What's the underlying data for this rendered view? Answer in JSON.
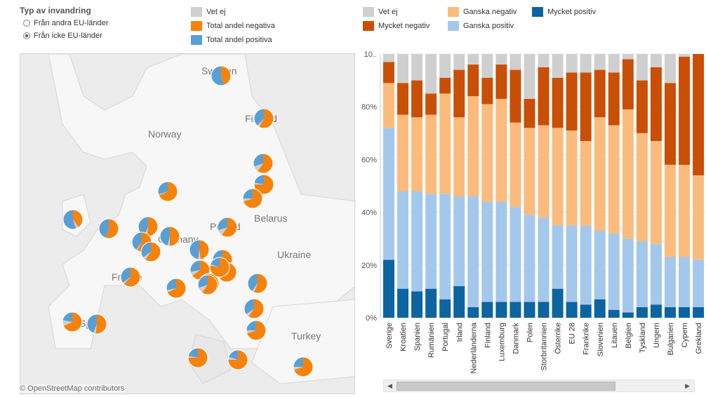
{
  "filter": {
    "title": "Typ av invandring",
    "options": [
      {
        "label": "Från andra EU-länder",
        "checked": false
      },
      {
        "label": "Från icke EU-länder",
        "checked": true
      }
    ]
  },
  "map_legend": [
    {
      "label": "Vet ej",
      "color": "#cfcfcf"
    },
    {
      "label": "Total andel negativa",
      "color": "#f7820b"
    },
    {
      "label": "Total andel positiva",
      "color": "#5a9fd4"
    }
  ],
  "bar_legend": [
    {
      "label": "Vet ej",
      "color": "#cfcfcf"
    },
    {
      "label": "Mycket negativ",
      "color": "#c84f05"
    },
    {
      "label": "Ganska negativ",
      "color": "#fbbb7d"
    },
    {
      "label": "Ganska positiv",
      "color": "#a4c8ec"
    },
    {
      "label": "Mycket positiv",
      "color": "#0c64a0"
    }
  ],
  "map": {
    "labels": [
      "Sweden",
      "Finland",
      "Norway",
      "Poland",
      "Belarus",
      "Ukraine",
      "Germany",
      "France",
      "Spain",
      "Turkey"
    ],
    "attribution": "© OpenStreetMap contributors",
    "pies": [
      {
        "negative": 45,
        "positive": 55,
        "unknown": 0
      },
      {
        "negative": 58,
        "positive": 38,
        "unknown": 4
      },
      {
        "negative": 60,
        "positive": 30,
        "unknown": 10
      },
      {
        "negative": 75,
        "positive": 22,
        "unknown": 3
      },
      {
        "negative": 70,
        "positive": 25,
        "unknown": 5
      },
      {
        "negative": 68,
        "positive": 30,
        "unknown": 2
      },
      {
        "negative": 40,
        "positive": 55,
        "unknown": 5
      },
      {
        "negative": 55,
        "positive": 45,
        "unknown": 0
      },
      {
        "negative": 52,
        "positive": 44,
        "unknown": 4
      },
      {
        "negative": 58,
        "positive": 40,
        "unknown": 2
      },
      {
        "negative": 50,
        "positive": 46,
        "unknown": 4
      },
      {
        "negative": 60,
        "positive": 35,
        "unknown": 5
      },
      {
        "negative": 48,
        "positive": 48,
        "unknown": 4
      },
      {
        "negative": 60,
        "positive": 30,
        "unknown": 10
      },
      {
        "negative": 70,
        "positive": 25,
        "unknown": 5
      },
      {
        "negative": 65,
        "positive": 28,
        "unknown": 7
      },
      {
        "negative": 62,
        "positive": 33,
        "unknown": 5
      },
      {
        "negative": 72,
        "positive": 25,
        "unknown": 3
      },
      {
        "negative": 68,
        "positive": 28,
        "unknown": 4
      },
      {
        "negative": 60,
        "positive": 30,
        "unknown": 10
      },
      {
        "negative": 62,
        "positive": 35,
        "unknown": 3
      },
      {
        "negative": 56,
        "positive": 40,
        "unknown": 4
      },
      {
        "negative": 68,
        "positive": 22,
        "unknown": 10
      },
      {
        "negative": 52,
        "positive": 44,
        "unknown": 4
      },
      {
        "negative": 60,
        "positive": 35,
        "unknown": 5
      },
      {
        "negative": 70,
        "positive": 25,
        "unknown": 5
      },
      {
        "negative": 70,
        "positive": 25,
        "unknown": 5
      },
      {
        "negative": 75,
        "positive": 22,
        "unknown": 3
      },
      {
        "negative": 75,
        "positive": 20,
        "unknown": 5
      },
      {
        "negative": 78,
        "positive": 20,
        "unknown": 2
      }
    ]
  },
  "chart_data": {
    "type": "bar",
    "stacked": true,
    "title": "",
    "xlabel": "",
    "ylabel": "",
    "ylim": [
      0,
      100
    ],
    "y_ticks": [
      "0%",
      "20%",
      "40%",
      "60%",
      "80%",
      "10.."
    ],
    "categories": [
      "Sverige",
      "Kroatien",
      "Spanien",
      "Rumänien",
      "Portugal",
      "Irland",
      "Nederländerna",
      "Finland",
      "Luxemburg",
      "Danmark",
      "Polen",
      "Storbritannien",
      "Österrike",
      "EU 28",
      "Frankrike",
      "Slovenien",
      "Litauen",
      "Belgien",
      "Tyskland",
      "Ungern",
      "Bulgarien",
      "Cypern",
      "Grekland"
    ],
    "series": [
      {
        "name": "Mycket positiv",
        "values": [
          22,
          11,
          10,
          11,
          7,
          12,
          4,
          6,
          6,
          6,
          6,
          6,
          11,
          6,
          5,
          7,
          3,
          2,
          4,
          5,
          4,
          4,
          4
        ]
      },
      {
        "name": "Ganska positiv",
        "values": [
          50,
          37,
          38,
          36,
          40,
          34,
          42,
          38,
          38,
          36,
          33,
          32,
          24,
          29,
          30,
          26,
          29,
          28,
          25,
          23,
          19,
          19,
          18
        ]
      },
      {
        "name": "Ganska negativ",
        "values": [
          17,
          29,
          28,
          30,
          38,
          30,
          38,
          37,
          39,
          32,
          33,
          35,
          37,
          36,
          32,
          43,
          41,
          49,
          41,
          39,
          35,
          35,
          32
        ]
      },
      {
        "name": "Mycket negativ",
        "values": [
          8,
          12,
          14,
          8,
          6,
          18,
          12,
          10,
          13,
          20,
          11,
          22,
          19,
          22,
          26,
          18,
          20,
          19,
          20,
          28,
          31,
          41,
          46
        ]
      },
      {
        "name": "Vet ej",
        "values": [
          3,
          11,
          10,
          15,
          9,
          6,
          4,
          9,
          4,
          6,
          17,
          5,
          9,
          7,
          7,
          6,
          7,
          2,
          10,
          5,
          11,
          1,
          0
        ]
      }
    ]
  },
  "scrollbar": {
    "left_arrow": "◀",
    "right_arrow": "▶"
  }
}
